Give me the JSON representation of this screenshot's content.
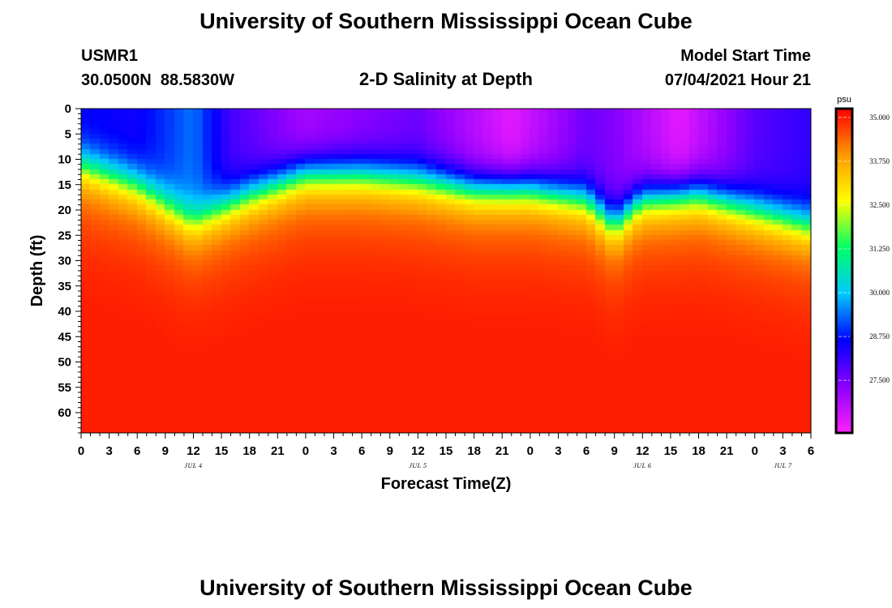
{
  "header": {
    "title": "University of Southern Mississippi Ocean Cube",
    "station_id": "USMR1",
    "station_coords": "30.0500N  88.5830W",
    "plot_name": "2-D Salinity at Depth",
    "model_start_label": "Model Start Time",
    "model_start_value": "07/04/2021 Hour 21"
  },
  "footer": {
    "title": "University of Southern Mississippi Ocean Cube"
  },
  "chart_data": {
    "type": "heatmap",
    "title": "2-D Salinity at Depth",
    "xlabel": "Forecast Time(Z)",
    "ylabel": "Depth (ft)",
    "x_hours_range": [
      0,
      78
    ],
    "x_ticks": [
      {
        "hour": 0,
        "label": "0"
      },
      {
        "hour": 3,
        "label": "3"
      },
      {
        "hour": 6,
        "label": "6"
      },
      {
        "hour": 9,
        "label": "9"
      },
      {
        "hour": 12,
        "label": "12"
      },
      {
        "hour": 15,
        "label": "15"
      },
      {
        "hour": 18,
        "label": "18"
      },
      {
        "hour": 21,
        "label": "21"
      },
      {
        "hour": 24,
        "label": "0"
      },
      {
        "hour": 27,
        "label": "3"
      },
      {
        "hour": 30,
        "label": "6"
      },
      {
        "hour": 33,
        "label": "9"
      },
      {
        "hour": 36,
        "label": "12"
      },
      {
        "hour": 39,
        "label": "15"
      },
      {
        "hour": 42,
        "label": "18"
      },
      {
        "hour": 45,
        "label": "21"
      },
      {
        "hour": 48,
        "label": "0"
      },
      {
        "hour": 51,
        "label": "3"
      },
      {
        "hour": 54,
        "label": "6"
      },
      {
        "hour": 57,
        "label": "9"
      },
      {
        "hour": 60,
        "label": "12"
      },
      {
        "hour": 63,
        "label": "15"
      },
      {
        "hour": 66,
        "label": "18"
      },
      {
        "hour": 69,
        "label": "21"
      },
      {
        "hour": 72,
        "label": "0"
      },
      {
        "hour": 75,
        "label": "3"
      },
      {
        "hour": 78,
        "label": "6"
      }
    ],
    "day_labels": [
      {
        "hour": 12,
        "label": "JUL 4"
      },
      {
        "hour": 36,
        "label": "JUL 5"
      },
      {
        "hour": 60,
        "label": "JUL 6"
      },
      {
        "hour": 75,
        "label": "JUL 7"
      }
    ],
    "y_ticks": [
      0,
      5,
      10,
      15,
      20,
      25,
      30,
      35,
      40,
      45,
      50,
      55,
      60
    ],
    "ylim": [
      0,
      64
    ],
    "colorbar": {
      "unit": "psu",
      "range": [
        26.0,
        35.25
      ],
      "tick_values": [
        35.0,
        33.75,
        32.5,
        31.25,
        30.0,
        28.75,
        27.5
      ],
      "tick_labels": [
        "35.000",
        "33.750",
        "32.500",
        "31.250",
        "30.000",
        "28.750",
        "27.500"
      ],
      "colors": [
        "#ff20ff",
        "#8b00ff",
        "#0000ff",
        "#00c8ff",
        "#00ff66",
        "#ffff00",
        "#ff9900",
        "#ff0000"
      ]
    },
    "halocline_depth_ft": [
      {
        "hour": 0,
        "depth": 10
      },
      {
        "hour": 6,
        "depth": 14
      },
      {
        "hour": 12,
        "depth": 21
      },
      {
        "hour": 18,
        "depth": 16
      },
      {
        "hour": 24,
        "depth": 12
      },
      {
        "hour": 30,
        "depth": 12
      },
      {
        "hour": 36,
        "depth": 13
      },
      {
        "hour": 42,
        "depth": 15
      },
      {
        "hour": 48,
        "depth": 15
      },
      {
        "hour": 54,
        "depth": 17
      },
      {
        "hour": 57,
        "depth": 22
      },
      {
        "hour": 60,
        "depth": 17
      },
      {
        "hour": 66,
        "depth": 16
      },
      {
        "hour": 72,
        "depth": 19
      },
      {
        "hour": 78,
        "depth": 22
      }
    ],
    "surface_salinity_psu": [
      {
        "hour": 0,
        "value": 28.6
      },
      {
        "hour": 6,
        "value": 28.5
      },
      {
        "hour": 12,
        "value": 29.4
      },
      {
        "hour": 16,
        "value": 28.0
      },
      {
        "hour": 24,
        "value": 27.0
      },
      {
        "hour": 36,
        "value": 27.6
      },
      {
        "hour": 46,
        "value": 26.3
      },
      {
        "hour": 54,
        "value": 27.6
      },
      {
        "hour": 57,
        "value": 27.4
      },
      {
        "hour": 64,
        "value": 26.3
      },
      {
        "hour": 72,
        "value": 27.8
      },
      {
        "hour": 78,
        "value": 28.2
      }
    ],
    "deep_salinity_psu": 35.0
  }
}
